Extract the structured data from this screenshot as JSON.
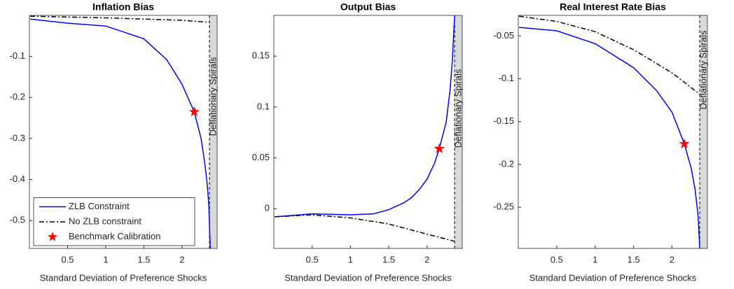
{
  "chart_data": [
    {
      "type": "line",
      "title": "Inflation Bias",
      "xlabel": "Standard Deviation of Preference Shocks",
      "xlim": [
        0,
        2.46
      ],
      "ylim": [
        -0.568,
        0
      ],
      "xticks": [
        0.5,
        1,
        1.5,
        2
      ],
      "yticks": [
        -0.5,
        -0.4,
        -0.3,
        -0.2,
        -0.1
      ],
      "annotation": "Deflationary Spirals",
      "shade_x": [
        2.36,
        2.46
      ],
      "legend": "lower left",
      "series": [
        {
          "name": "ZLB Constraint",
          "color": "#0000ff",
          "linestyle": "solid",
          "x": [
            0.01,
            0.5,
            1,
            1.5,
            1.8,
            2,
            2.16,
            2.25,
            2.3,
            2.33,
            2.35,
            2.37
          ],
          "values": [
            -0.009,
            -0.019,
            -0.026,
            -0.057,
            -0.108,
            -0.168,
            -0.235,
            -0.3,
            -0.363,
            -0.41,
            -0.457,
            -0.568
          ]
        },
        {
          "name": "No ZLB constraint",
          "color": "#000000",
          "linestyle": "dashdot",
          "x": [
            0.01,
            1,
            2,
            2.36
          ],
          "values": [
            -0.002,
            -0.006,
            -0.012,
            -0.017
          ]
        },
        {
          "name": "Benchmark Calibration",
          "color": "#ff0000",
          "marker": "star",
          "x": [
            2.16
          ],
          "values": [
            -0.235
          ]
        }
      ]
    },
    {
      "type": "line",
      "title": "Output Bias",
      "xlabel": "Standard Deviation of Preference Shocks",
      "xlim": [
        0,
        2.46
      ],
      "ylim": [
        -0.039,
        0.19
      ],
      "xticks": [
        0.5,
        1,
        1.5,
        2
      ],
      "yticks": [
        0,
        0.05,
        0.1,
        0.15
      ],
      "annotation": "Deflationary Spirals",
      "shade_x": [
        2.36,
        2.46
      ],
      "series": [
        {
          "color": "#0000ff",
          "linestyle": "solid",
          "x": [
            0.01,
            0.5,
            1,
            1.3,
            1.5,
            1.7,
            1.8,
            1.9,
            2,
            2.1,
            2.16,
            2.25,
            2.3,
            2.33,
            2.36
          ],
          "values": [
            -0.008,
            -0.005,
            -0.006,
            -0.005,
            -0.001,
            0.006,
            0.011,
            0.019,
            0.029,
            0.045,
            0.059,
            0.085,
            0.116,
            0.145,
            0.19
          ]
        },
        {
          "color": "#000000",
          "linestyle": "dashdot",
          "x": [
            0.01,
            0.5,
            1,
            1.5,
            2,
            2.36
          ],
          "values": [
            -0.008,
            -0.006,
            -0.009,
            -0.015,
            -0.025,
            -0.032
          ]
        },
        {
          "color": "#ff0000",
          "marker": "star",
          "x": [
            2.16
          ],
          "values": [
            0.059
          ]
        }
      ]
    },
    {
      "type": "line",
      "title": "Real Interest Rate Bias",
      "xlabel": "Standard Deviation of Preference Shocks",
      "xlim": [
        0,
        2.46
      ],
      "ylim": [
        -0.298,
        -0.026
      ],
      "xticks": [
        0.5,
        1,
        1.5,
        2
      ],
      "yticks": [
        -0.25,
        -0.2,
        -0.15,
        -0.1,
        -0.05
      ],
      "annotation": "Deflationary Spirals",
      "shade_x": [
        2.36,
        2.46
      ],
      "series": [
        {
          "color": "#0000ff",
          "linestyle": "solid",
          "x": [
            0.01,
            0.5,
            1,
            1.5,
            1.8,
            2,
            2.16,
            2.25,
            2.3,
            2.34,
            2.36
          ],
          "values": [
            -0.04,
            -0.044,
            -0.059,
            -0.087,
            -0.114,
            -0.139,
            -0.176,
            -0.205,
            -0.229,
            -0.26,
            -0.298
          ]
        },
        {
          "color": "#000000",
          "linestyle": "dashdot",
          "x": [
            0.01,
            0.5,
            1,
            1.5,
            2,
            2.36
          ],
          "values": [
            -0.027,
            -0.033,
            -0.045,
            -0.066,
            -0.093,
            -0.118
          ]
        },
        {
          "color": "#ff0000",
          "marker": "star",
          "x": [
            2.16
          ],
          "values": [
            -0.176
          ]
        }
      ]
    }
  ]
}
